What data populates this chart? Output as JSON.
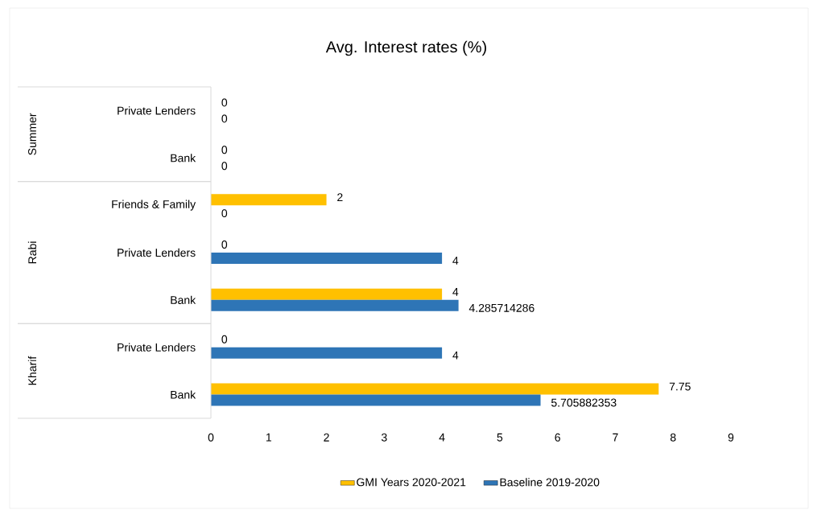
{
  "chart_data": {
    "type": "bar",
    "orientation": "horizontal",
    "title": "Avg. Interest rates (%)",
    "categories": [
      "Private Lenders",
      "Bank",
      "Friends & Family",
      "Private Lenders",
      "Bank",
      "Private Lenders",
      "Bank"
    ],
    "series": [
      {
        "name": "GMI Years 2020-2021",
        "color": "#ffc000",
        "values": [
          0,
          0,
          2,
          0,
          4,
          0,
          7.75
        ]
      },
      {
        "name": "Baseline 2019-2020",
        "color": "#2e75b6",
        "values": [
          0,
          0,
          0,
          4,
          4.285714286,
          4,
          5.705882353
        ]
      }
    ],
    "xlim": [
      0,
      9
    ],
    "xticks": [
      0,
      1,
      2,
      3,
      4,
      5,
      6,
      7,
      8,
      9
    ],
    "annotations": [
      "Summer",
      "Rabi",
      "Kharif"
    ],
    "data_labels": true,
    "legend": "bottom",
    "grid": false
  }
}
